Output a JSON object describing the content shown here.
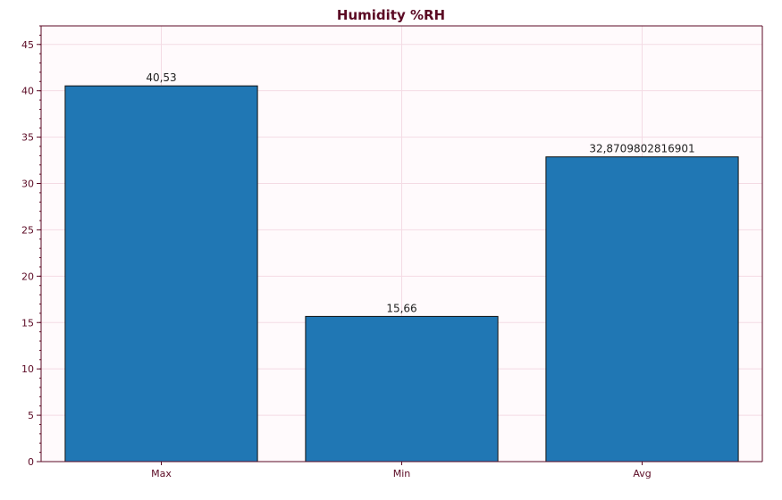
{
  "colors": {
    "bar_fill": "#2077b4",
    "bar_stroke": "#111111",
    "plot_background": "#fffafc",
    "grid": "#f4dbe4",
    "axis": "#5b0a24",
    "tick_label": "#5b0a24",
    "value_label": "#222222"
  },
  "chart_data": {
    "type": "bar",
    "title": "Humidity %RH",
    "xlabel": "",
    "ylabel": "",
    "categories": [
      "Max",
      "Min",
      "Avg"
    ],
    "values": [
      40.53,
      15.66,
      32.8709802816901
    ],
    "value_labels": [
      "40,53",
      "15,66",
      "32,8709802816901"
    ],
    "ylim": [
      0,
      47
    ],
    "yticks": [
      0,
      5,
      10,
      15,
      20,
      25,
      30,
      35,
      40,
      45
    ],
    "ytick_labels": [
      "0",
      "5",
      "10",
      "15",
      "20",
      "25",
      "30",
      "35",
      "40",
      "45"
    ],
    "grid": true,
    "legend": "none"
  }
}
